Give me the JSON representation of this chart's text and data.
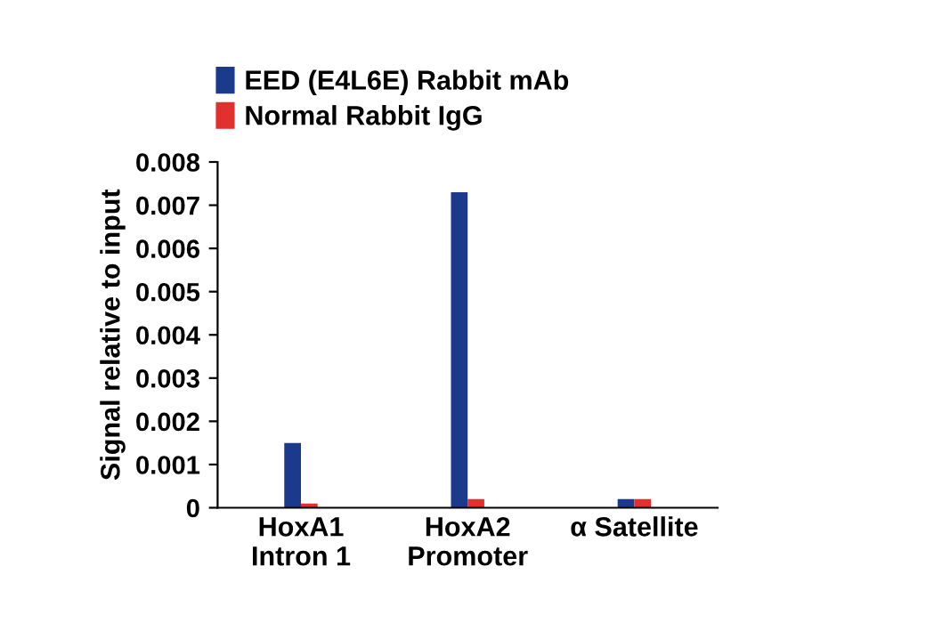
{
  "chart_data": {
    "type": "bar",
    "ylabel": "Signal relative to input",
    "categories": [
      "HoxA1\nIntron 1",
      "HoxA2\nPromoter",
      "α Satellite"
    ],
    "series": [
      {
        "name": "EED (E4L6E) Rabbit mAb",
        "color": "#1b3a8c",
        "values": [
          0.0015,
          0.0073,
          0.0002
        ]
      },
      {
        "name": "Normal Rabbit IgG",
        "color": "#e0312f",
        "values": [
          0.0001,
          0.0002,
          0.0002
        ]
      }
    ],
    "ylim": [
      0,
      0.008
    ],
    "yticks": [
      0,
      0.001,
      0.002,
      0.003,
      0.004,
      0.005,
      0.006,
      0.007,
      0.008
    ],
    "grid": false,
    "legend": "top"
  }
}
